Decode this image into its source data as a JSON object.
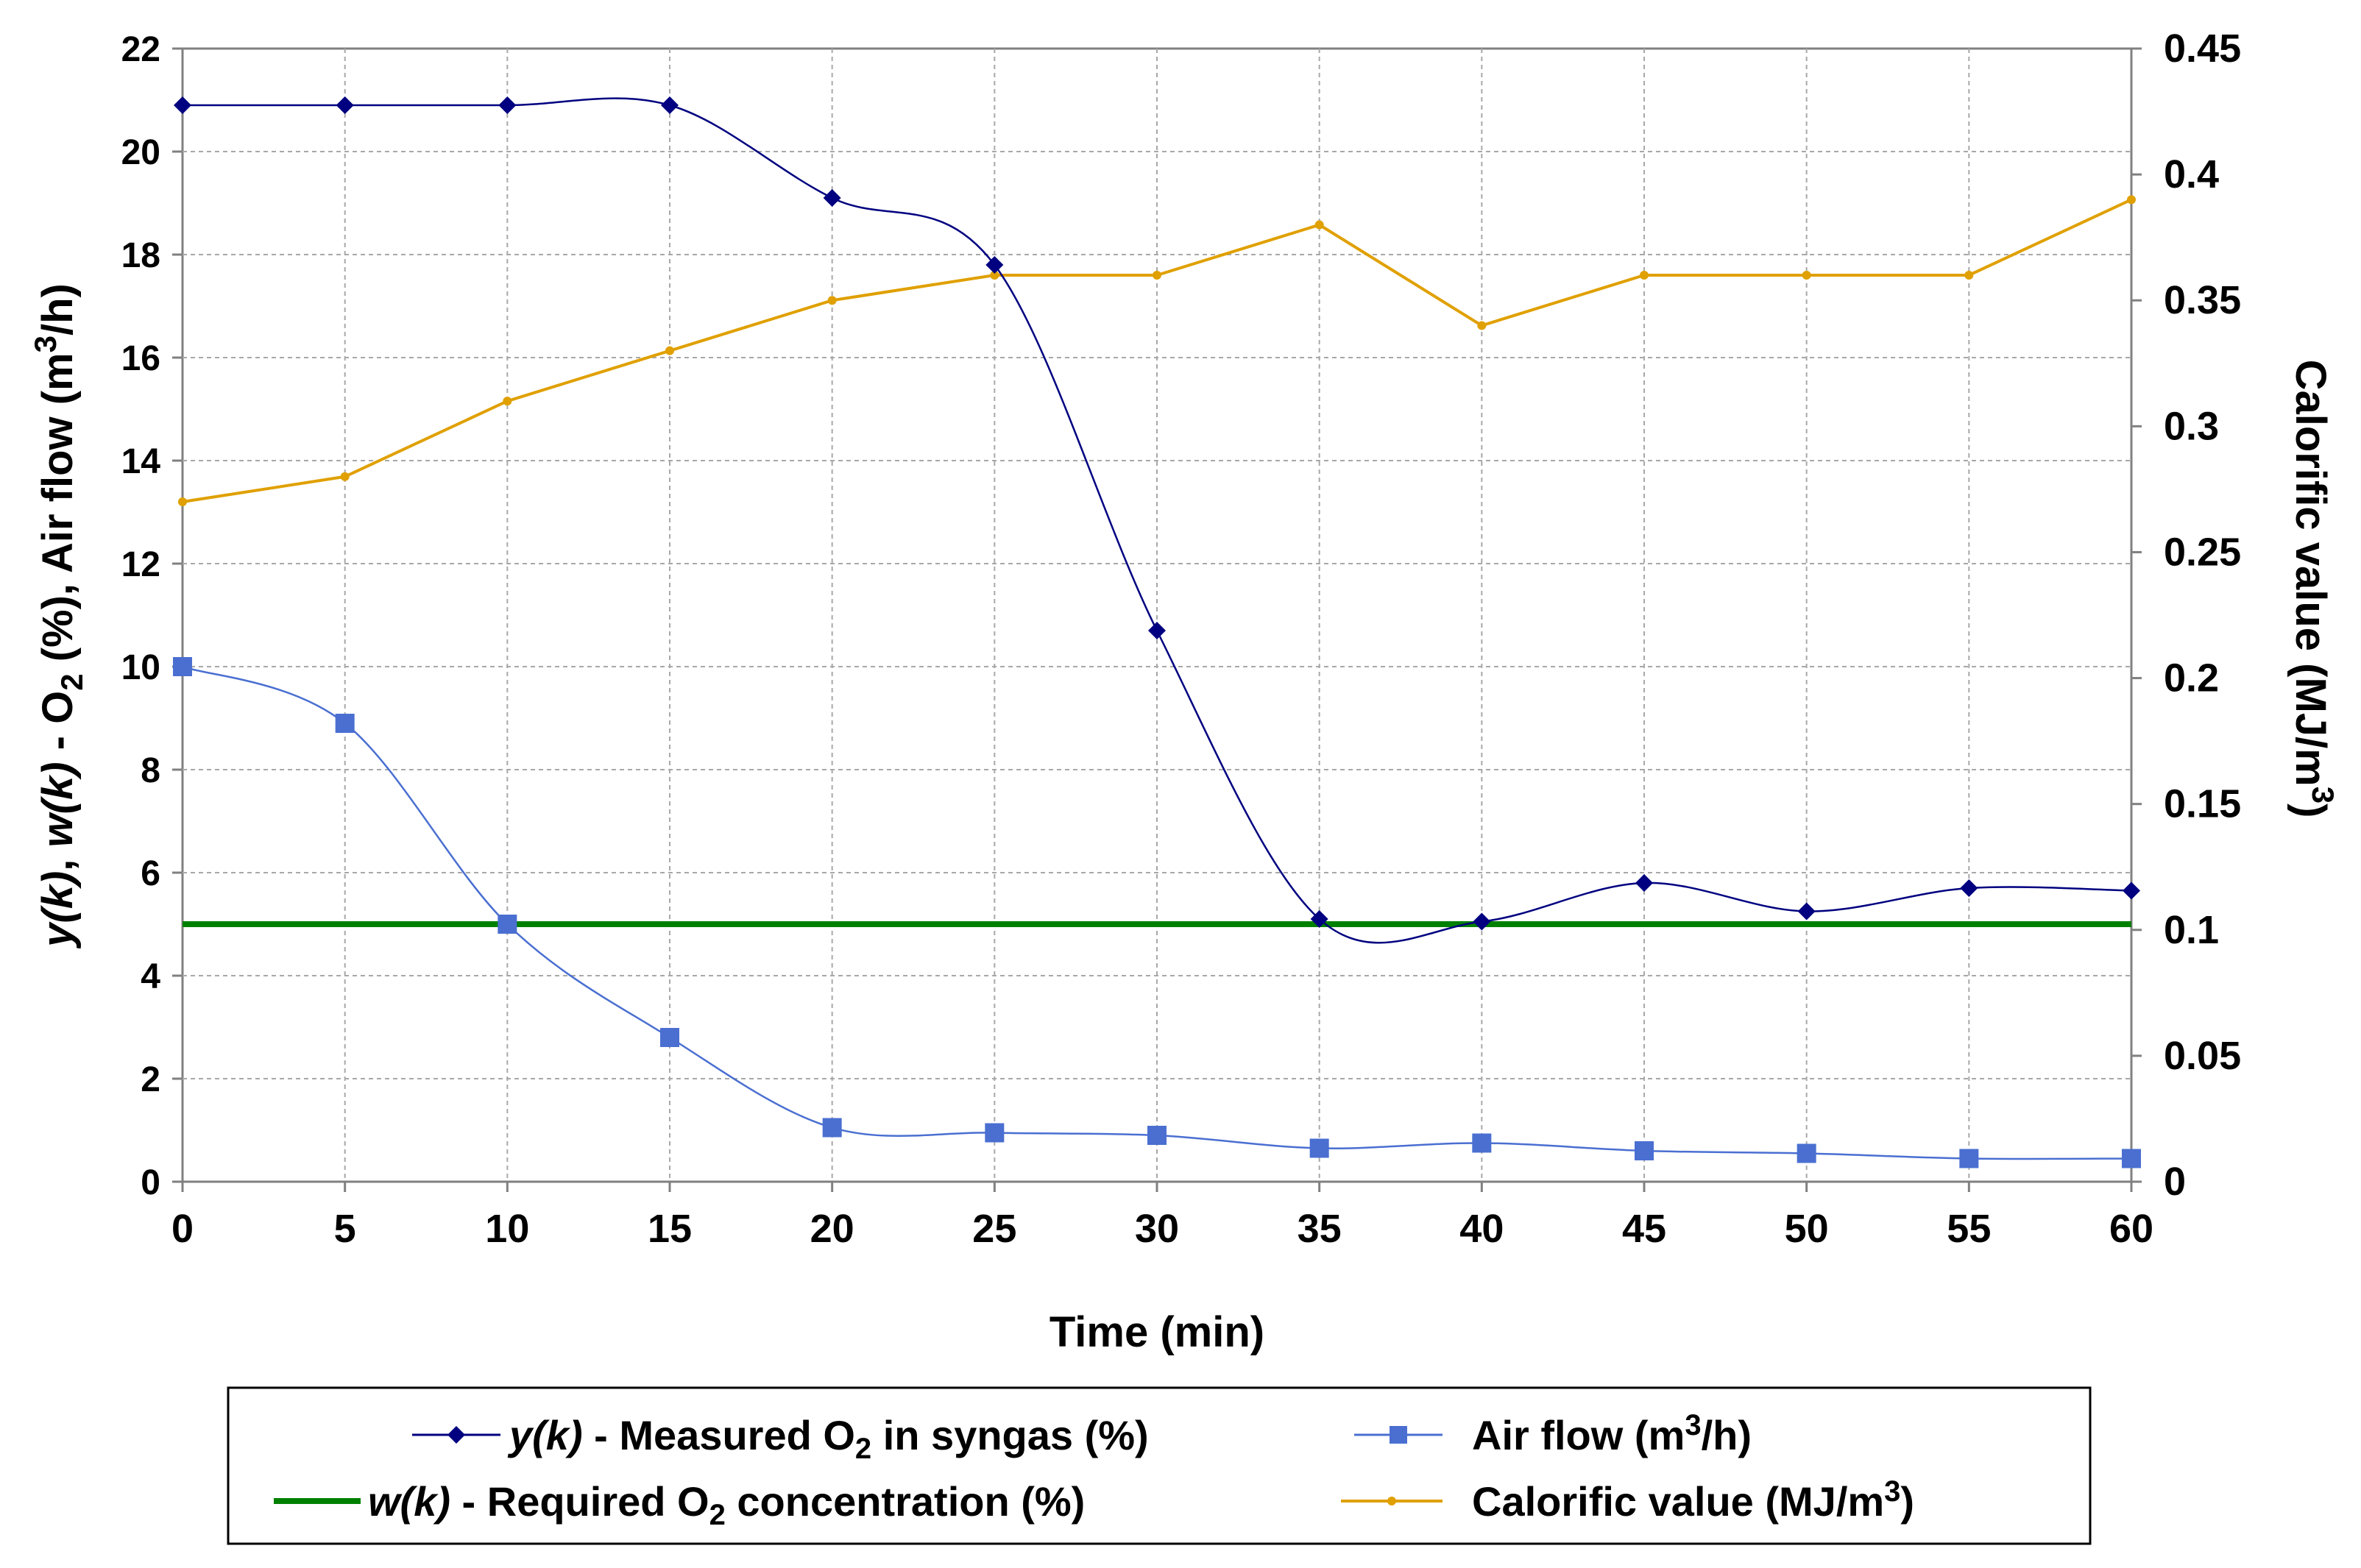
{
  "chart_data": {
    "type": "line",
    "x": [
      0,
      5,
      10,
      15,
      20,
      25,
      30,
      35,
      40,
      45,
      50,
      55,
      60
    ],
    "xlabel": "Time (min)",
    "xlim": [
      0,
      60
    ],
    "x_ticks": [
      "0",
      "5",
      "10",
      "15",
      "20",
      "25",
      "30",
      "35",
      "40",
      "45",
      "50",
      "55",
      "60"
    ],
    "ylabel": {
      "p1": "y(k)",
      "p2": ", ",
      "p3": "w(k)",
      "p4": " - O",
      "p5": "2",
      "p6": " (%),  Air flow (m",
      "p7": "3",
      "p8": "/h)"
    },
    "ylim": [
      0,
      22
    ],
    "y_ticks": [
      "0",
      "2",
      "4",
      "6",
      "8",
      "10",
      "12",
      "14",
      "16",
      "18",
      "20",
      "22"
    ],
    "y2label": {
      "p1": "Calorific value (MJ/m",
      "p2": "3",
      "p3": ")"
    },
    "y2lim": [
      0,
      0.45
    ],
    "y2_ticks": [
      "0",
      "0.05",
      "0.1",
      "0.15",
      "0.2",
      "0.25",
      "0.3",
      "0.35",
      "0.4",
      "0.45"
    ],
    "grid": true,
    "legend_position": "bottom",
    "series": [
      {
        "name": "y(k) - Measured O2 in syngas (%)",
        "axis": "left",
        "color": "#000080",
        "marker": "diamond",
        "values": [
          20.9,
          20.9,
          20.9,
          20.9,
          19.1,
          17.8,
          10.7,
          5.1,
          5.05,
          5.8,
          5.25,
          5.7,
          5.65
        ]
      },
      {
        "name": "Air flow (m3/h)",
        "axis": "left",
        "color": "#4a6fd1",
        "marker": "square",
        "values": [
          10.0,
          8.9,
          5.0,
          2.8,
          1.05,
          0.95,
          0.9,
          0.65,
          0.75,
          0.6,
          0.55,
          0.45,
          0.45
        ]
      },
      {
        "name": "w(k) - Required O2 concentration (%)",
        "axis": "left",
        "color": "#008000",
        "marker": "none",
        "values": [
          5,
          5,
          5,
          5,
          5,
          5,
          5,
          5,
          5,
          5,
          5,
          5,
          5
        ]
      },
      {
        "name": "Calorific value (MJ/m3)",
        "axis": "right",
        "color": "#e0a000",
        "marker": "dot",
        "values": [
          0.27,
          0.28,
          0.31,
          0.33,
          0.35,
          0.36,
          0.36,
          0.38,
          0.34,
          0.36,
          0.36,
          0.36,
          0.39
        ]
      }
    ],
    "legend": {
      "meas": {
        "p1": "y(k)",
        "p2": " - Measured O",
        "p3": "2",
        "p4": " in syngas (%)"
      },
      "air": {
        "p1": "Air flow (m",
        "p2": "3",
        "p3": "/h)"
      },
      "req": {
        "p1": "w(k)",
        "p2": " - Required O",
        "p3": "2",
        "p4": " concentration (%)"
      },
      "cal": {
        "p1": "Calorific value (MJ/m",
        "p2": "3",
        "p3": ")"
      }
    }
  }
}
